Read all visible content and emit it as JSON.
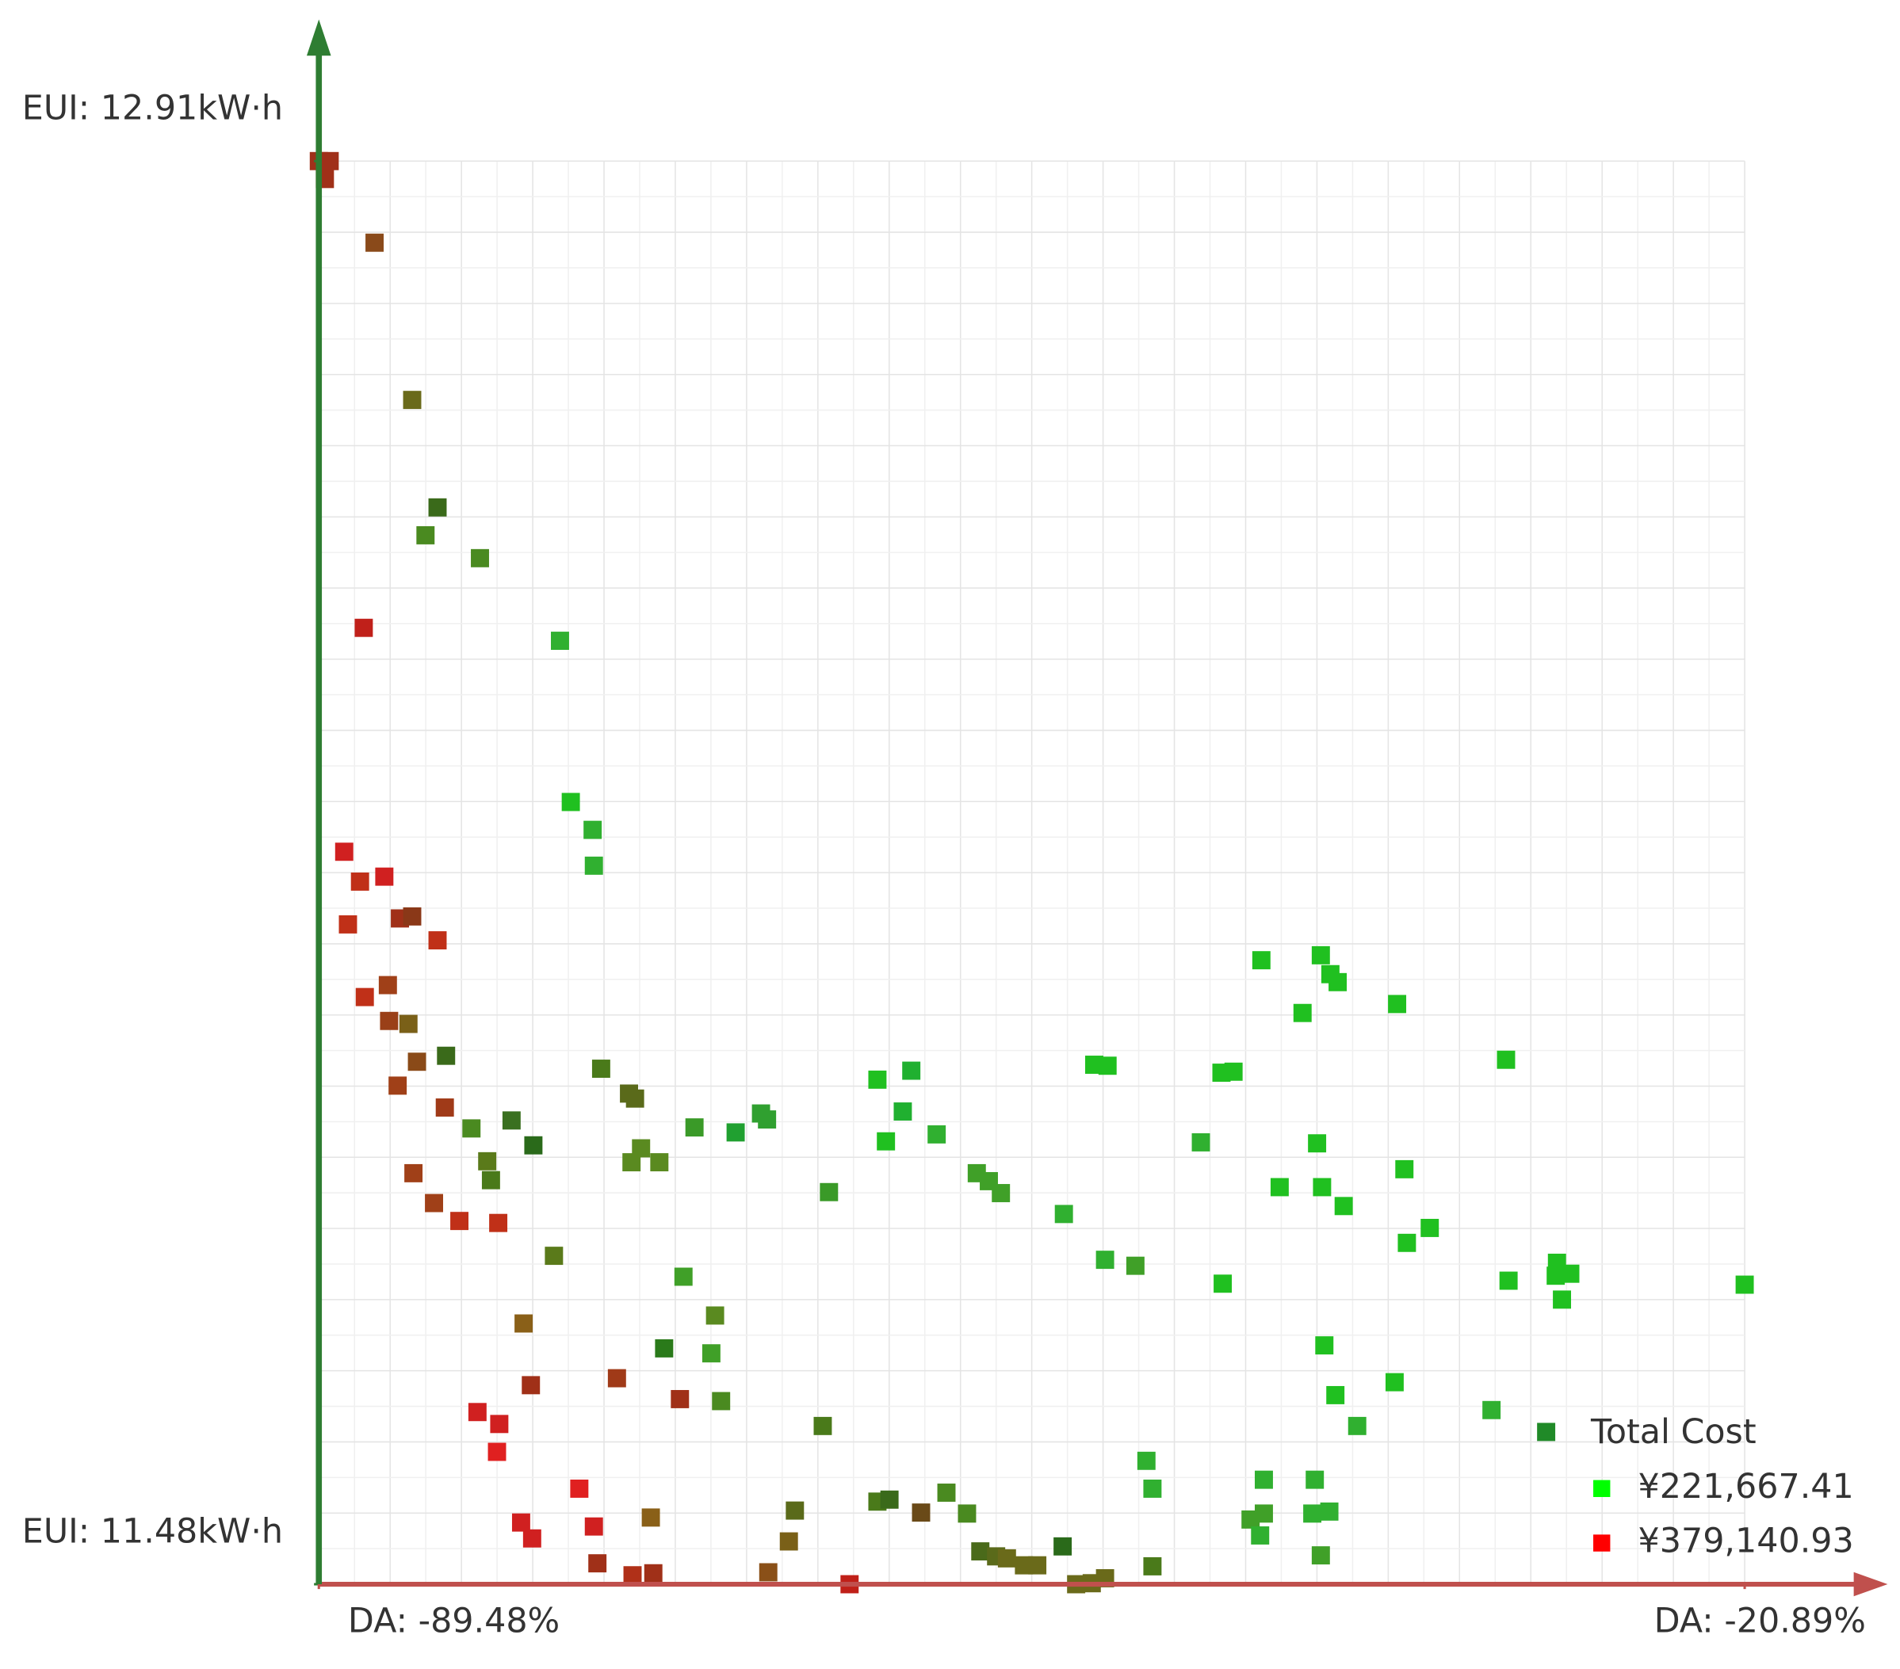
{
  "chart_data": {
    "type": "scatter",
    "xlim": [
      -89.48,
      -20.89
    ],
    "ylim": [
      11.48,
      12.91
    ],
    "xticks": [
      {
        "value": -89.48,
        "label": "DA: -89.48%"
      },
      {
        "value": -20.89,
        "label": "DA: -20.89%"
      }
    ],
    "yticks": [
      {
        "value": 11.48,
        "label": "EUI: 11.48kW·h"
      },
      {
        "value": 12.91,
        "label": "EUI: 12.91kW·h"
      }
    ],
    "grid": true,
    "x": [
      -89.48,
      -88.96,
      -89.19,
      -86.8,
      -84.99,
      -83.77,
      -84.35,
      -81.73,
      -87.32,
      -77.88,
      -77.36,
      -76.31,
      -76.25,
      -88.26,
      -87.5,
      -86.33,
      -88.08,
      -85.58,
      -84.99,
      -83.77,
      -87.27,
      -86.16,
      -86.1,
      -85.17,
      -83.36,
      -84.76,
      -85.69,
      -83.42,
      -82.14,
      -80.21,
      -79.16,
      -81.38,
      -81.2,
      -84.93,
      -83.94,
      -82.72,
      -80.85,
      -75.9,
      -74.56,
      -74.27,
      -73.98,
      -74.44,
      -73.1,
      -71.41,
      -69.43,
      -68.21,
      -67.92,
      -64.94,
      -62.61,
      -60.98,
      -61.39,
      -62.2,
      -59.76,
      -57.83,
      -57.25,
      -56.67,
      -53.64,
      -52.18,
      -51.54,
      -51.66,
      -50.2,
      -46.06,
      -45.48,
      -47.05,
      -44.14,
      -41.28,
      -40.82,
      -40.47,
      -42.16,
      -37.61,
      -32.37,
      -41.46,
      -43.26,
      -41.22,
      -37.26,
      -40.18,
      -37.14,
      -36.04,
      -46.0,
      -32.25,
      -29.92,
      -29.98,
      -29.28,
      -29.68,
      -20.89,
      -78.17,
      -71.94,
      -70.42,
      -79.63,
      -72.87,
      -70.6,
      -79.28,
      -75.14,
      -72.11,
      -70.13,
      -81.85,
      -80.8,
      -80.91,
      -65.24,
      -41.11,
      -40.58,
      -37.73,
      -39.53,
      -33.07,
      -30.44,
      -76.95,
      -76.25,
      -79.75,
      -79.22,
      -76.08,
      -73.51,
      -74.39,
      -73.39,
      -67.86,
      -66.87,
      -66.58,
      -63.95,
      -62.61,
      -62.03,
      -60.51,
      -59.29,
      -58.3,
      -57.66,
      -56.9,
      -56.38,
      -55.56,
      -54.92,
      -53.7,
      -53.05,
      -52.3,
      -51.66,
      -49.67,
      -49.38,
      -49.38,
      -44.02,
      -44.66,
      -44.02,
      -44.2,
      -41.57,
      -41.69,
      -40.87,
      -41.28
    ],
    "values": [
      12.91,
      12.91,
      12.892,
      12.828,
      12.67,
      12.562,
      12.534,
      12.511,
      12.441,
      12.428,
      12.266,
      12.238,
      12.202,
      12.216,
      12.186,
      12.191,
      12.143,
      12.149,
      12.151,
      12.127,
      12.07,
      12.082,
      12.046,
      12.043,
      12.011,
      12.005,
      11.981,
      11.959,
      11.938,
      11.946,
      11.921,
      11.905,
      11.886,
      11.893,
      11.863,
      11.845,
      11.843,
      11.998,
      11.973,
      11.968,
      11.918,
      11.904,
      11.904,
      11.939,
      11.934,
      11.953,
      11.947,
      11.874,
      11.987,
      11.996,
      11.955,
      11.925,
      11.932,
      11.893,
      11.885,
      11.873,
      11.852,
      12.002,
      12.001,
      11.806,
      11.8,
      11.994,
      11.995,
      11.924,
      12.107,
      12.112,
      12.093,
      12.085,
      12.054,
      12.063,
      12.007,
      11.923,
      11.879,
      11.879,
      11.897,
      11.86,
      11.823,
      11.838,
      11.782,
      11.785,
      11.803,
      11.79,
      11.792,
      11.766,
      11.781,
      11.81,
      11.789,
      11.75,
      11.742,
      11.717,
      11.712,
      11.68,
      11.687,
      11.666,
      11.664,
      11.653,
      11.641,
      11.613,
      11.639,
      11.72,
      11.67,
      11.683,
      11.639,
      11.655,
      11.633,
      11.576,
      11.538,
      11.542,
      11.526,
      11.501,
      11.547,
      11.489,
      11.491,
      11.492,
      11.523,
      11.554,
      11.48,
      11.563,
      11.565,
      11.552,
      11.572,
      11.551,
      11.513,
      11.508,
      11.506,
      11.499,
      11.499,
      11.518,
      11.48,
      11.481,
      11.486,
      11.604,
      11.576,
      11.498,
      11.585,
      11.545,
      11.551,
      11.529,
      11.585,
      11.551,
      11.553,
      11.509
    ],
    "colors": [
      "#a0301a",
      "#a0301a",
      "#a03018",
      "#8a4a1a",
      "#6a6a1a",
      "#3a6a1a",
      "#4a8a20",
      "#4a8a20",
      "#c0201a",
      "#30b030",
      "#20c020",
      "#30b030",
      "#30b030",
      "#d02020",
      "#c03018",
      "#d02020",
      "#c03018",
      "#a03018",
      "#8a3818",
      "#c03018",
      "#c03018",
      "#a04018",
      "#9a4018",
      "#7a6018",
      "#3a6a1a",
      "#8a4a18",
      "#a04018",
      "#a03a18",
      "#4a8a20",
      "#3a7020",
      "#2a6a1a",
      "#5a7a1a",
      "#4a7a1a",
      "#a04018",
      "#a04018",
      "#c03018",
      "#c03018",
      "#4a7a1a",
      "#5a6a1a",
      "#5a6a1a",
      "#5a8a20",
      "#5a8a20",
      "#5a8a20",
      "#3a9a28",
      "#20a030",
      "#30a030",
      "#30a030",
      "#3a9a28",
      "#20c020",
      "#20b030",
      "#20b030",
      "#20c020",
      "#30b030",
      "#40a028",
      "#40a028",
      "#40a028",
      "#30b030",
      "#20c020",
      "#20c020",
      "#30b030",
      "#40a028",
      "#20c020",
      "#20c020",
      "#30b030",
      "#20c020",
      "#20c020",
      "#20c020",
      "#20c020",
      "#20c020",
      "#20c020",
      "#20c020",
      "#20c020",
      "#20c020",
      "#20c020",
      "#20c020",
      "#20c020",
      "#20c020",
      "#20c020",
      "#20c020",
      "#20c020",
      "#20c020",
      "#20c020",
      "#20c020",
      "#20c020",
      "#20c020",
      "#5a7a1a",
      "#40a028",
      "#5a8a20",
      "#8a6018",
      "#2a7a1a",
      "#40a028",
      "#a03018",
      "#a03a18",
      "#a03018",
      "#4a8a20",
      "#d02020",
      "#d02020",
      "#e02020",
      "#4a7a1a",
      "#20c020",
      "#20c020",
      "#20c020",
      "#30b030",
      "#30b030",
      "#208a28",
      "#e02020",
      "#d02020",
      "#d02020",
      "#d02020",
      "#a03018",
      "#8a6018",
      "#b03018",
      "#a03018",
      "#8a5018",
      "#7a6018",
      "#5a6a1a",
      "#c02018",
      "#4a7a1a",
      "#3a6a1a",
      "#6a4a18",
      "#4a8a20",
      "#4a8a20",
      "#4a6a1a",
      "#5a6a1a",
      "#6a6a1a",
      "#6a6a1a",
      "#6a6a1a",
      "#2a6a1a",
      "#6a6a1a",
      "#6a6a1a",
      "#6a6a1a",
      "#30b030",
      "#30b030",
      "#4a7a1a",
      "#30b030",
      "#40a028",
      "#40a028",
      "#30b030",
      "#30b030",
      "#30b030",
      "#30b030",
      "#40a028"
    ],
    "legend_position": "lower right",
    "legend": {
      "title": "Total Cost",
      "entries": [
        {
          "label": "¥221,667.41",
          "color": "#00ff00"
        },
        {
          "label": "¥379,140.93",
          "color": "#ff0000"
        }
      ]
    }
  }
}
